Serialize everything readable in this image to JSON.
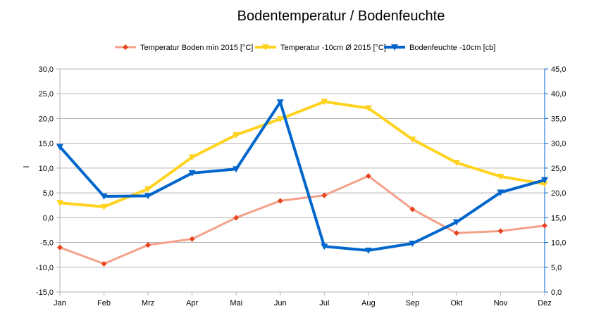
{
  "chart_data": {
    "type": "line",
    "title": "Bodentemperatur / Bodenfeuchte",
    "ylabel": "l",
    "categories": [
      "Jan",
      "Feb",
      "Mrz",
      "Apr",
      "Mai",
      "Jun",
      "Jul",
      "Aug",
      "Sep",
      "Okt",
      "Nov",
      "Dez"
    ],
    "y_left": {
      "range": [
        -15,
        30
      ],
      "ticks": [
        "30,0",
        "25,0",
        "20,0",
        "15,0",
        "10,0",
        "5,0",
        "0,0",
        "-5,0",
        "-10,0",
        "-15,0"
      ]
    },
    "y_right": {
      "range": [
        0,
        45
      ],
      "ticks": [
        "45,0",
        "40,0",
        "35,0",
        "30,0",
        "25,0",
        "20,0",
        "15,0",
        "10,0",
        "5,0",
        "0,0"
      ]
    },
    "grid": true,
    "legend_position": "top",
    "series": [
      {
        "name": "Temperatur Boden min  2015 [°C]",
        "axis": "left",
        "color": "#f4a18a",
        "marker_color": "#e8431e",
        "marker": "diamond",
        "values": [
          -6.0,
          -9.3,
          -5.5,
          -4.3,
          0.0,
          3.4,
          4.5,
          8.4,
          1.7,
          -3.1,
          -2.7,
          -1.6
        ]
      },
      {
        "name": "Temperatur -10cm Ø 2015 [°C]",
        "axis": "left",
        "color": "#ffd320",
        "marker_color": "#ffd320",
        "marker": "triangle-down",
        "values": [
          3.0,
          2.2,
          5.8,
          12.2,
          16.7,
          19.9,
          23.4,
          22.1,
          15.8,
          11.1,
          8.3,
          6.8
        ]
      },
      {
        "name": "Bodenfeuchte -10cm [cb]",
        "axis": "right",
        "color": "#0066cc",
        "marker_color": "#0066cc",
        "marker": "triangle-down",
        "values": [
          29.3,
          19.3,
          19.4,
          24.0,
          24.8,
          38.3,
          9.2,
          8.4,
          9.8,
          14.1,
          20.1,
          22.6
        ]
      }
    ]
  }
}
